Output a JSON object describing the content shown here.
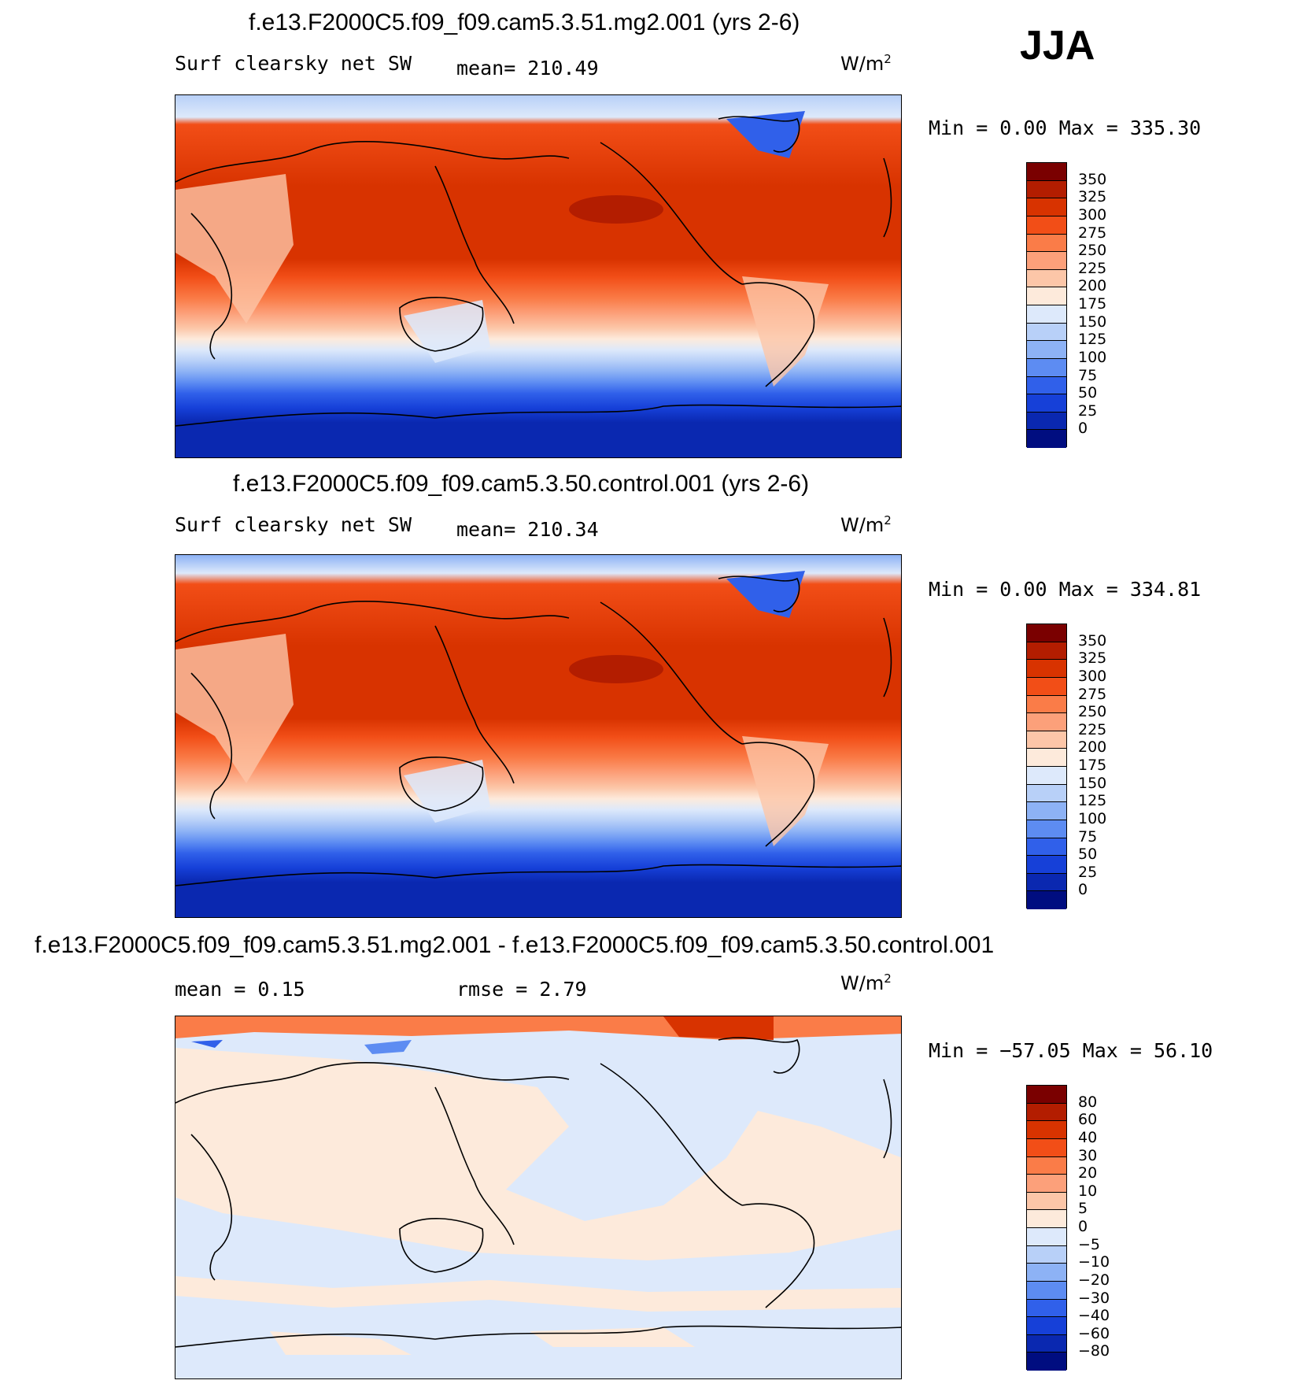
{
  "season": "JJA",
  "panels": [
    {
      "id": "mg2",
      "title": "f.e13.F2000C5.f09_f09.cam5.3.51.mg2.001 (yrs 2-6)",
      "variable": "Surf clearsky net SW",
      "stat": "mean= 210.49",
      "units": "W/m",
      "units_sup": "2",
      "range": "Min =    0.00 Max = 335.30",
      "colorbar": {
        "labels": [
          "350",
          "325",
          "300",
          "275",
          "250",
          "225",
          "200",
          "175",
          "150",
          "125",
          "100",
          "75",
          "50",
          "25",
          "0"
        ],
        "colors": [
          "#7a0000",
          "#b31d00",
          "#d83300",
          "#f24e17",
          "#fa7c48",
          "#fca07a",
          "#fcc6a8",
          "#fdeadb",
          "#dde9fb",
          "#b8d0f8",
          "#8db2f5",
          "#5d8cf2",
          "#3060ea",
          "#1640d8",
          "#0a28b0",
          "#000d80"
        ]
      }
    },
    {
      "id": "control",
      "title": "f.e13.F2000C5.f09_f09.cam5.3.50.control.001 (yrs 2-6)",
      "variable": "Surf clearsky net SW",
      "stat": "mean= 210.34",
      "units": "W/m",
      "units_sup": "2",
      "range": "Min =    0.00 Max = 334.81",
      "colorbar": {
        "labels": [
          "350",
          "325",
          "300",
          "275",
          "250",
          "225",
          "200",
          "175",
          "150",
          "125",
          "100",
          "75",
          "50",
          "25",
          "0"
        ],
        "colors": [
          "#7a0000",
          "#b31d00",
          "#d83300",
          "#f24e17",
          "#fa7c48",
          "#fca07a",
          "#fcc6a8",
          "#fdeadb",
          "#dde9fb",
          "#b8d0f8",
          "#8db2f5",
          "#5d8cf2",
          "#3060ea",
          "#1640d8",
          "#0a28b0",
          "#000d80"
        ]
      }
    },
    {
      "id": "diff",
      "title": "f.e13.F2000C5.f09_f09.cam5.3.51.mg2.001 - f.e13.F2000C5.f09_f09.cam5.3.50.control.001",
      "mean_label": "mean =    0.15",
      "rmse_label": "rmse =    2.79",
      "units": "W/m",
      "units_sup": "2",
      "range": "Min = −57.05 Max =   56.10",
      "colorbar": {
        "labels": [
          "80",
          "60",
          "40",
          "30",
          "20",
          "10",
          "5",
          "0",
          "−5",
          "−10",
          "−20",
          "−30",
          "−40",
          "−60",
          "−80"
        ],
        "colors": [
          "#7a0000",
          "#b31d00",
          "#d83300",
          "#f24e17",
          "#fa7c48",
          "#fca07a",
          "#fcc6a8",
          "#fdeadb",
          "#dde9fb",
          "#b8d0f8",
          "#8db2f5",
          "#5d8cf2",
          "#3060ea",
          "#1640d8",
          "#0a28b0",
          "#000d80"
        ]
      }
    }
  ]
}
